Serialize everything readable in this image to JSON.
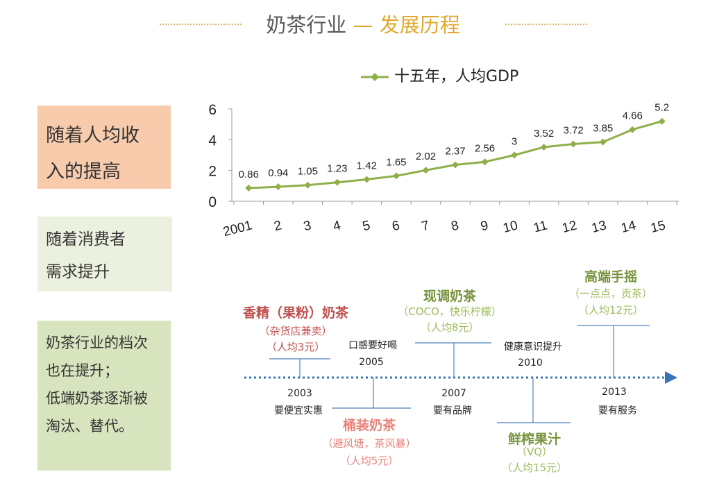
{
  "title": {
    "left": "奶茶行业",
    "dash": "—",
    "right": "发展历程"
  },
  "colors": {
    "line": "#8faf4a",
    "accent_orange": "#c0504d",
    "accent_green": "#77933c",
    "accent_pink": "#e8827a",
    "arrow_blue": "#3a74b4",
    "box1_bg": "#f8cbad",
    "box2_bg": "#ebf1de",
    "box3_bg": "#d7e4bd"
  },
  "side_boxes": [
    {
      "lines": [
        "随着人均收",
        "入的提高"
      ]
    },
    {
      "lines": [
        "随着消费者",
        "需求提升"
      ]
    },
    {
      "lines": [
        "奶茶行业的档次",
        "也在提升；",
        "低端奶茶逐渐被",
        "淘汰、替代。"
      ]
    }
  ],
  "chart_data": {
    "type": "line",
    "series": [
      {
        "name": "十五年，人均GDP",
        "values": [
          0.86,
          0.94,
          1.05,
          1.23,
          1.42,
          1.65,
          2.02,
          2.37,
          2.56,
          3,
          3.52,
          3.72,
          3.85,
          4.66,
          5.2
        ]
      }
    ],
    "categories": [
      "2001",
      "2",
      "3",
      "4",
      "5",
      "6",
      "7",
      "8",
      "9",
      "10",
      "11",
      "12",
      "13",
      "14",
      "15"
    ],
    "data_labels": [
      "0.86",
      "0.94",
      "1.05",
      "1.23",
      "1.42",
      "1.65",
      "2.02",
      "2.37",
      "2.56",
      "3",
      "3.52",
      "3.72",
      "3.85",
      "4.66",
      "5.2"
    ],
    "y_ticks": [
      "0",
      "2",
      "4",
      "6"
    ],
    "ylim": [
      0,
      6
    ],
    "legend": "top",
    "grid": false
  },
  "timeline": {
    "events_above": [
      {
        "title": "香精（果粉）奶茶",
        "lines": [
          "（杂货店兼卖）",
          "（人均3元）"
        ],
        "color": "#c0504d"
      },
      {
        "title": "现调奶茶",
        "lines": [
          "（COCO，快乐柠檬）",
          "（人均8元）"
        ],
        "color": "#77933c"
      },
      {
        "title": "高端手摇",
        "lines": [
          "（一点点，贡茶）",
          "（人均12元）"
        ],
        "color": "#77933c"
      }
    ],
    "events_below": [
      {
        "title": "桶装奶茶",
        "lines": [
          "（避风塘，茶风暴）",
          "（人均5元）"
        ],
        "color": "#e8827a"
      },
      {
        "title": "鲜榨果汁",
        "lines": [
          "（VQ）",
          "（人均15元）"
        ],
        "color": "#77933c"
      }
    ],
    "year_notes": [
      {
        "year": "2003",
        "note": "要便宜实惠"
      },
      {
        "year": "2005",
        "note": "口感要好喝"
      },
      {
        "year": "2007",
        "note": "要有品牌"
      },
      {
        "year": "2010",
        "note": "健康意识提升"
      },
      {
        "year": "2013",
        "note": "要有服务"
      }
    ]
  }
}
